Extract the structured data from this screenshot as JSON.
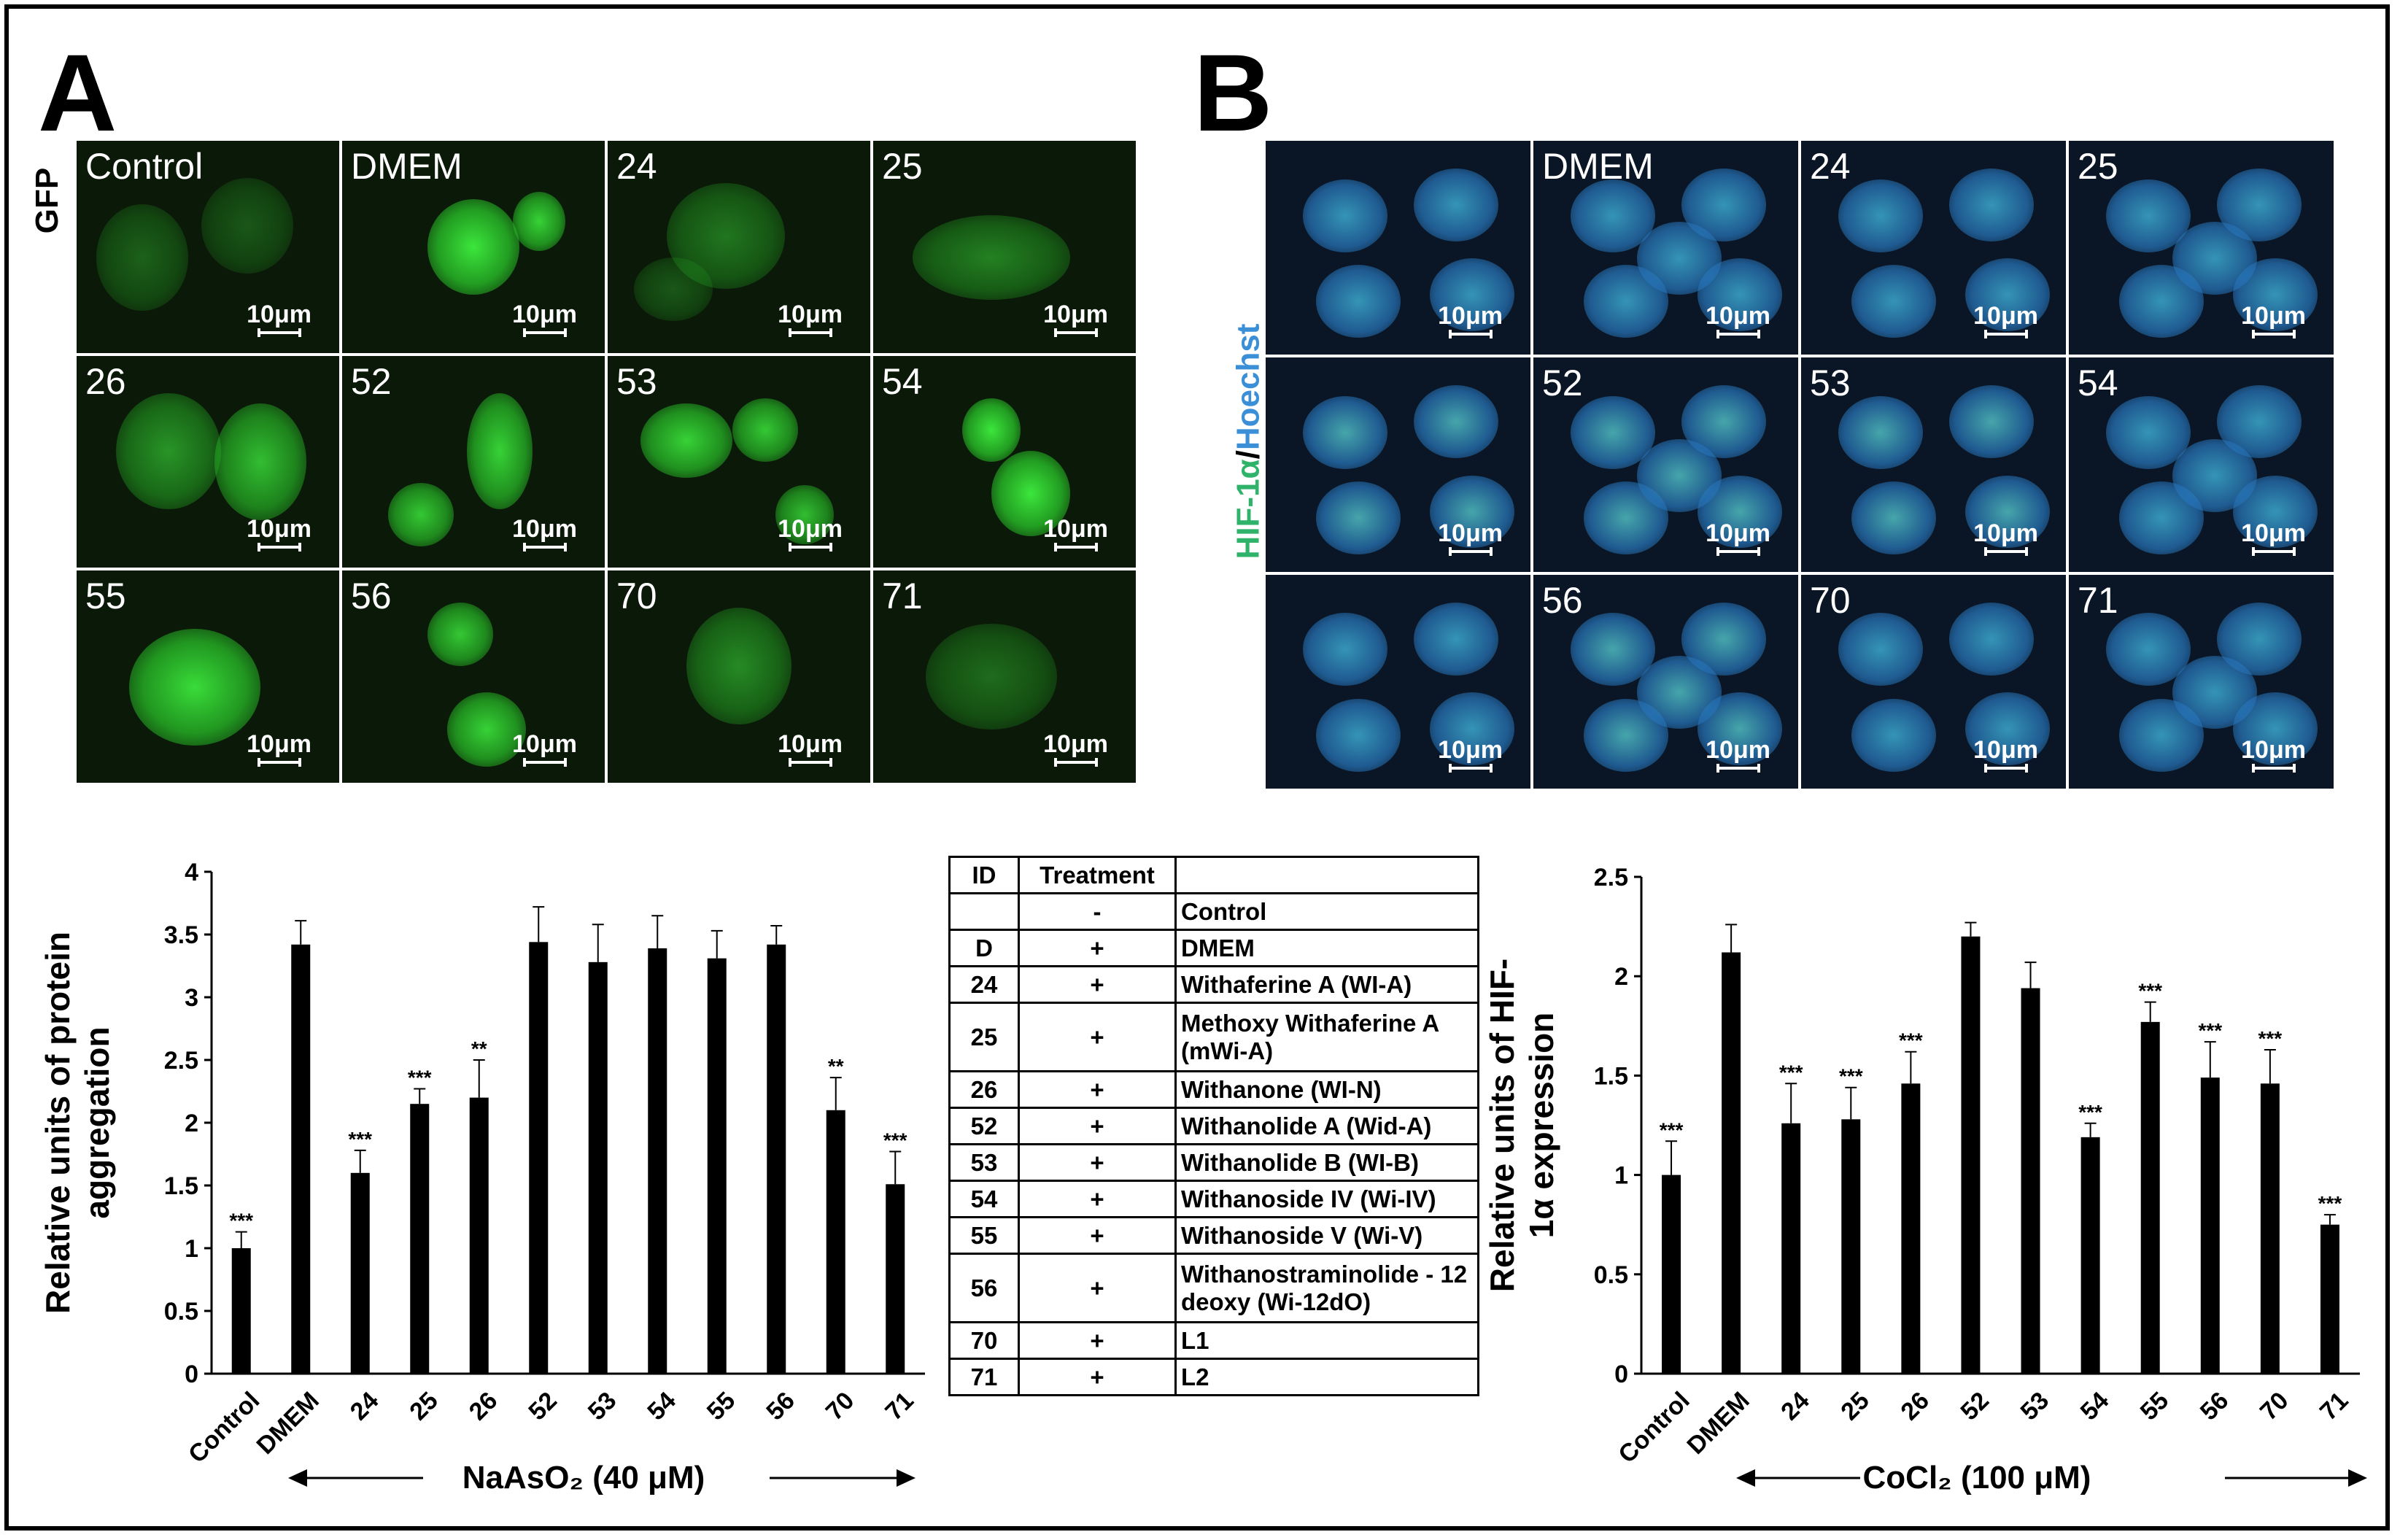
{
  "panels": {
    "A": {
      "letter": "A",
      "side_label": "GFP",
      "scale_bar": "10μm",
      "tiles": [
        "Control",
        "DMEM",
        "24",
        "25",
        "26",
        "52",
        "53",
        "54",
        "55",
        "56",
        "70",
        "71"
      ]
    },
    "B": {
      "letter": "B",
      "side_label_part1": "HIF-1α",
      "side_label_sep": "/",
      "side_label_part2": "Hoechst",
      "scale_bar": "10μm",
      "tiles": [
        "",
        "DMEM",
        "24",
        "25",
        "",
        "52",
        "53",
        "54",
        "",
        "56",
        "70",
        "71"
      ]
    }
  },
  "colors": {
    "gfp_green": "#39d639",
    "hif_green": "#2fb36a",
    "hoechst_blue": "#3a8fd6",
    "bar": "#000000"
  },
  "chart_data": [
    {
      "type": "bar",
      "title": "",
      "ylabel_line1": "Relative units of protein",
      "ylabel_line2": "aggregation",
      "xlabel": "NaAsO₂ (40 μM)",
      "categories": [
        "Control",
        "DMEM",
        "24",
        "25",
        "26",
        "52",
        "53",
        "54",
        "55",
        "56",
        "70",
        "71"
      ],
      "values": [
        1.0,
        3.42,
        1.6,
        2.15,
        2.2,
        3.44,
        3.28,
        3.39,
        3.31,
        3.42,
        2.1,
        1.51
      ],
      "errors": [
        0.13,
        0.19,
        0.18,
        0.12,
        0.3,
        0.28,
        0.3,
        0.26,
        0.22,
        0.15,
        0.26,
        0.26
      ],
      "significance": [
        "***",
        "",
        "***",
        "***",
        "**",
        "",
        "",
        "",
        "",
        "",
        "**",
        "***"
      ],
      "ylim": [
        0,
        4
      ],
      "yticks": [
        "0",
        "0.5",
        "1",
        "1.5",
        "2",
        "2.5",
        "3",
        "3.5",
        "4"
      ],
      "ytick_values": [
        0,
        0.5,
        1,
        1.5,
        2,
        2.5,
        3,
        3.5,
        4
      ],
      "grid": false
    },
    {
      "type": "bar",
      "title": "",
      "ylabel_line1": "Relative units of HIF-",
      "ylabel_line2": "1α expression",
      "xlabel": "CoCl₂  (100 μM)",
      "categories": [
        "Control",
        "DMEM",
        "24",
        "25",
        "26",
        "52",
        "53",
        "54",
        "55",
        "56",
        "70",
        "71"
      ],
      "values": [
        1.0,
        2.12,
        1.26,
        1.28,
        1.46,
        2.2,
        1.94,
        1.19,
        1.77,
        1.49,
        1.46,
        0.75
      ],
      "errors": [
        0.17,
        0.14,
        0.2,
        0.16,
        0.16,
        0.07,
        0.13,
        0.07,
        0.1,
        0.18,
        0.17,
        0.05
      ],
      "significance": [
        "***",
        "",
        "***",
        "***",
        "***",
        "",
        "",
        "***",
        "***",
        "***",
        "***",
        "***"
      ],
      "ylim": [
        0,
        2.5
      ],
      "yticks": [
        "0",
        "0.5",
        "1",
        "1.5",
        "2",
        "2.5"
      ],
      "ytick_values": [
        0,
        0.5,
        1,
        1.5,
        2,
        2.5
      ],
      "grid": false
    }
  ],
  "legend_table": {
    "header": {
      "id": "ID",
      "treatment": "Treatment",
      "name": ""
    },
    "rows": [
      {
        "id": "",
        "treatment": "-",
        "name": "Control"
      },
      {
        "id": "D",
        "treatment": "+",
        "name": "DMEM"
      },
      {
        "id": "24",
        "treatment": "+",
        "name": "Withaferine A (WI-A)"
      },
      {
        "id": "25",
        "treatment": "+",
        "name": "Methoxy Withaferine A (mWi-A)"
      },
      {
        "id": "26",
        "treatment": "+",
        "name": "Withanone (WI-N)"
      },
      {
        "id": "52",
        "treatment": "+",
        "name": "Withanolide A (Wid-A)"
      },
      {
        "id": "53",
        "treatment": "+",
        "name": "Withanolide B (WI-B)"
      },
      {
        "id": "54",
        "treatment": "+",
        "name": "Withanoside IV (Wi-IV)"
      },
      {
        "id": "55",
        "treatment": "+",
        "name": "Withanoside V (Wi-V)"
      },
      {
        "id": "56",
        "treatment": "+",
        "name": "Withanostraminolide - 12 deoxy (Wi-12dO)"
      },
      {
        "id": "70",
        "treatment": "+",
        "name": "L1"
      },
      {
        "id": "71",
        "treatment": "+",
        "name": "L2"
      }
    ]
  }
}
